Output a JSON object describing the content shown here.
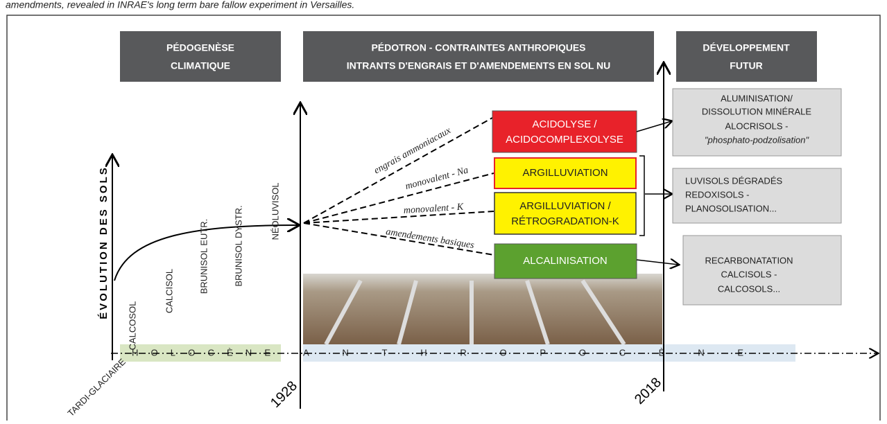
{
  "caption": "amendments, revealed in INRAE's long term bare fallow experiment in Versailles.",
  "headers": [
    {
      "lines": [
        "PÉDOGENÈSE",
        "CLIMATIQUE"
      ]
    },
    {
      "lines": [
        "PÉDOTRON - CONTRAINTES ANTHROPIQUES",
        "INTRANTS D'ENGRAIS ET D'AMENDEMENTS EN SOL NU"
      ]
    },
    {
      "lines": [
        "DÉVELOPPEMENT",
        "FUTUR"
      ]
    }
  ],
  "y_axis_label": "ÉVOLUTION DES SOLS",
  "soils": [
    "CALCOSOL",
    "CALCISOL",
    "BRUNISOL EUTR.",
    "BRUNISOL DYSTR.",
    "NÉOLUVISOL"
  ],
  "periods": [
    "HOLOCÈNE",
    "ANTHROPOCÈNE"
  ],
  "dates": {
    "start": "TARDI-GLACIAIRE",
    "d1": "1928",
    "d2": "2018"
  },
  "inputs": [
    "engrais ammoniacaux",
    "monovalent - Na",
    "monovalent - K",
    "amendements basiques"
  ],
  "processes": [
    {
      "lines": [
        "ACIDOLYSE /",
        "ACIDOCOMPLEXOLYSE"
      ]
    },
    {
      "lines": [
        "ARGILLUVIATION"
      ]
    },
    {
      "lines": [
        "ARGILLUVIATION /",
        "RÉTROGRADATION-K"
      ]
    },
    {
      "lines": [
        "ALCALINISATION"
      ]
    }
  ],
  "futures": [
    {
      "lines": [
        "ALUMINISATION/",
        "DISSOLUTION MINÉRALE",
        "ALOCRISOLS -",
        "\"phosphato-podzolisation\""
      ]
    },
    {
      "lines": [
        "LUVISOLS DÉGRADÉS",
        "REDOXISOLS -",
        "PLANOSOLISATION..."
      ]
    },
    {
      "lines": [
        "RECARBONATATION",
        "CALCISOLS -",
        "CALCOSOLS..."
      ]
    }
  ]
}
